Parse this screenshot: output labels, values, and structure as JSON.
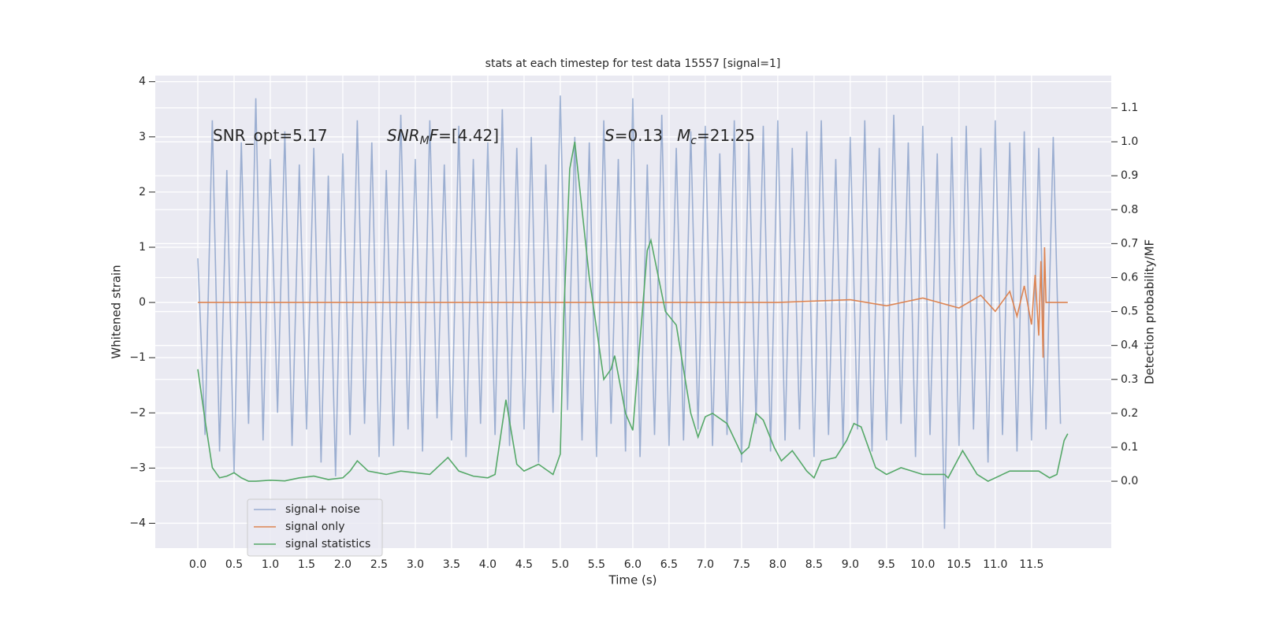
{
  "chart_data": {
    "type": "line",
    "title": "stats at each timestep for test data 15557 [signal=1]",
    "xlabel": "Time (s)",
    "ylabel": "Whitened strain",
    "y2label": "Detection probability/MF",
    "xlim": [
      -0.587,
      12.6
    ],
    "ylim": [
      -4.45,
      4.11
    ],
    "y2lim": [
      -0.197,
      1.195
    ],
    "xticks": [
      {
        "value": 0,
        "label": "0.0"
      },
      0.5,
      {
        "value": 1,
        "label": "1.0"
      },
      1.5,
      {
        "value": 2,
        "label": "2.0"
      },
      2.5,
      {
        "value": 3,
        "label": "3.0"
      },
      3.5,
      {
        "value": 4,
        "label": "4.0"
      },
      4.5,
      {
        "value": 5,
        "label": "5.0"
      },
      5.5,
      {
        "value": 6,
        "label": "6.0"
      },
      6.5,
      {
        "value": 7,
        "label": "7.0"
      },
      7.5,
      {
        "value": 8,
        "label": "8.0"
      },
      8.5,
      {
        "value": 9,
        "label": "9.0"
      },
      9.5,
      {
        "value": 10,
        "label": "10.0"
      },
      10.5,
      {
        "value": 11,
        "label": "11.0"
      },
      11.5
    ],
    "yticks": [
      {
        "value": -4,
        "label": "−4"
      },
      {
        "value": -3,
        "label": "−3"
      },
      {
        "value": -2,
        "label": "−2"
      },
      {
        "value": -1,
        "label": "−1"
      },
      0,
      1,
      2,
      3,
      4
    ],
    "y2ticks": [
      {
        "value": 0,
        "label": "0.0"
      },
      0.1,
      0.2,
      0.3,
      0.4,
      0.5,
      0.6,
      0.7,
      0.8,
      0.9,
      {
        "value": 1,
        "label": "1.0"
      },
      1.1
    ],
    "grid": true,
    "legend": "lower left",
    "annotations": [
      {
        "parts": [
          {
            "text": "SNR_opt=5.17"
          }
        ]
      },
      {
        "parts": [
          {
            "text": "SNR",
            "italic": true
          },
          {
            "text": "M",
            "italic": true,
            "sub": true
          },
          {
            "text": "F",
            "italic": true
          },
          {
            "text": "=[4.42]"
          }
        ]
      },
      {
        "parts": [
          {
            "text": "S",
            "italic": true
          },
          {
            "text": "=0.13"
          }
        ]
      },
      {
        "parts": [
          {
            "text": "M",
            "italic": true
          },
          {
            "text": "c",
            "italic": true,
            "sub": true
          },
          {
            "text": "=21.25"
          }
        ]
      }
    ],
    "series": [
      {
        "name": "signal+ noise",
        "color": "#4c72b0",
        "alpha": 0.5,
        "x": [
          0,
          0.1,
          0.2,
          0.3,
          0.4,
          0.5,
          0.6,
          0.7,
          0.8,
          0.9,
          1,
          1.1,
          1.2,
          1.3,
          1.4,
          1.5,
          1.6,
          1.7,
          1.8,
          1.9,
          2,
          2.1,
          2.2,
          2.3,
          2.4,
          2.5,
          2.6,
          2.7,
          2.8,
          2.9,
          3,
          3.1,
          3.2,
          3.3,
          3.4,
          3.5,
          3.6,
          3.7,
          3.8,
          3.9,
          4,
          4.1,
          4.2,
          4.3,
          4.4,
          4.5,
          4.6,
          4.7,
          4.8,
          4.9,
          5,
          5.1,
          5.2,
          5.3,
          5.4,
          5.5,
          5.6,
          5.7,
          5.8,
          5.9,
          6,
          6.1,
          6.2,
          6.3,
          6.4,
          6.5,
          6.6,
          6.7,
          6.8,
          6.9,
          7,
          7.1,
          7.2,
          7.3,
          7.4,
          7.5,
          7.6,
          7.7,
          7.8,
          7.9,
          8,
          8.1,
          8.2,
          8.3,
          8.4,
          8.5,
          8.6,
          8.7,
          8.8,
          8.9,
          9,
          9.1,
          9.2,
          9.3,
          9.4,
          9.5,
          9.6,
          9.7,
          9.8,
          9.9,
          10,
          10.1,
          10.2,
          10.3,
          10.4,
          10.5,
          10.6,
          10.7,
          10.8,
          10.9,
          11,
          11.1,
          11.2,
          11.3,
          11.4,
          11.5,
          11.6,
          11.7,
          11.8,
          11.9
        ],
        "values": [
          0.8,
          -2.4,
          3.3,
          -2.7,
          2.4,
          -3.1,
          2.9,
          -2.2,
          3.7,
          -2.5,
          2.6,
          -2.0,
          3.1,
          -2.6,
          2.5,
          -2.3,
          2.8,
          -2.9,
          2.3,
          -3.15,
          2.7,
          -2.4,
          3.3,
          -2.2,
          2.9,
          -2.8,
          2.4,
          -2.6,
          3.4,
          -2.3,
          2.6,
          -2.7,
          3.3,
          -2.1,
          2.5,
          -2.5,
          3.2,
          -2.8,
          2.6,
          -2.2,
          2.9,
          -2.4,
          3.5,
          -2.6,
          2.8,
          -2.3,
          3.0,
          -2.9,
          2.5,
          -2.0,
          3.75,
          -1.95,
          3.0,
          -2.5,
          2.9,
          -2.8,
          3.3,
          -2.2,
          2.6,
          -2.7,
          3.7,
          -2.8,
          2.5,
          -2.4,
          3.4,
          -2.6,
          2.8,
          -2.5,
          3.1,
          -2.3,
          3.2,
          -2.6,
          2.7,
          -2.4,
          3.3,
          -2.9,
          2.9,
          -2.2,
          3.2,
          -2.7,
          3.3,
          -2.5,
          2.8,
          -2.3,
          3.1,
          -2.8,
          3.3,
          -2.4,
          2.6,
          -2.6,
          3.0,
          -2.3,
          3.3,
          -2.7,
          2.8,
          -2.5,
          3.4,
          -2.2,
          2.9,
          -2.8,
          3.2,
          -2.4,
          2.7,
          -4.1,
          3.0,
          -2.6,
          3.2,
          -2.3,
          2.8,
          -2.9,
          3.3,
          -2.4,
          2.9,
          -2.7,
          3.1,
          -2.5,
          2.8,
          -2.3,
          3.0,
          -2.2
        ]
      },
      {
        "name": "signal only",
        "color": "#dd8452",
        "x": [
          0,
          8,
          9,
          9.5,
          10,
          10.5,
          10.8,
          11,
          11.2,
          11.3,
          11.4,
          11.5,
          11.55,
          11.6,
          11.63,
          11.66,
          11.68,
          11.7,
          12
        ],
        "values": [
          0,
          0,
          0.05,
          -0.06,
          0.08,
          -0.1,
          0.13,
          -0.16,
          0.2,
          -0.25,
          0.3,
          -0.4,
          0.5,
          -0.6,
          0.75,
          -1.0,
          1.0,
          0,
          0
        ]
      },
      {
        "name": "signal statistics",
        "color": "#55a868",
        "axis": "y2",
        "x": [
          0,
          0.1,
          0.2,
          0.3,
          0.4,
          0.5,
          0.6,
          0.7,
          0.8,
          1.0,
          1.2,
          1.4,
          1.6,
          1.8,
          2.0,
          2.1,
          2.2,
          2.35,
          2.6,
          2.8,
          3.0,
          3.2,
          3.45,
          3.6,
          3.8,
          4.0,
          4.1,
          4.25,
          4.4,
          4.5,
          4.7,
          4.9,
          5.0,
          5.05,
          5.13,
          5.2,
          5.4,
          5.6,
          5.7,
          5.75,
          5.9,
          6.0,
          6.2,
          6.25,
          6.45,
          6.6,
          6.8,
          6.9,
          7.0,
          7.1,
          7.3,
          7.5,
          7.6,
          7.7,
          7.8,
          7.95,
          8.05,
          8.2,
          8.4,
          8.5,
          8.6,
          8.8,
          8.95,
          9.05,
          9.15,
          9.35,
          9.5,
          9.7,
          10.0,
          10.3,
          10.35,
          10.5,
          10.55,
          10.75,
          10.9,
          11.2,
          11.6,
          11.75,
          11.85,
          11.95,
          12.0
        ],
        "values": [
          0.33,
          0.18,
          0.04,
          0.01,
          0.015,
          0.025,
          0.01,
          0.0,
          0.0,
          0.003,
          0.001,
          0.01,
          0.015,
          0.005,
          0.01,
          0.03,
          0.06,
          0.03,
          0.02,
          0.03,
          0.025,
          0.02,
          0.07,
          0.03,
          0.015,
          0.01,
          0.02,
          0.24,
          0.05,
          0.03,
          0.05,
          0.02,
          0.08,
          0.5,
          0.92,
          1.0,
          0.6,
          0.3,
          0.33,
          0.37,
          0.2,
          0.15,
          0.68,
          0.71,
          0.5,
          0.46,
          0.2,
          0.13,
          0.19,
          0.2,
          0.17,
          0.08,
          0.1,
          0.2,
          0.18,
          0.1,
          0.06,
          0.09,
          0.03,
          0.01,
          0.06,
          0.07,
          0.12,
          0.17,
          0.16,
          0.04,
          0.02,
          0.04,
          0.02,
          0.02,
          0.01,
          0.07,
          0.09,
          0.02,
          0.0,
          0.03,
          0.03,
          0.01,
          0.02,
          0.12,
          0.14
        ]
      }
    ]
  }
}
